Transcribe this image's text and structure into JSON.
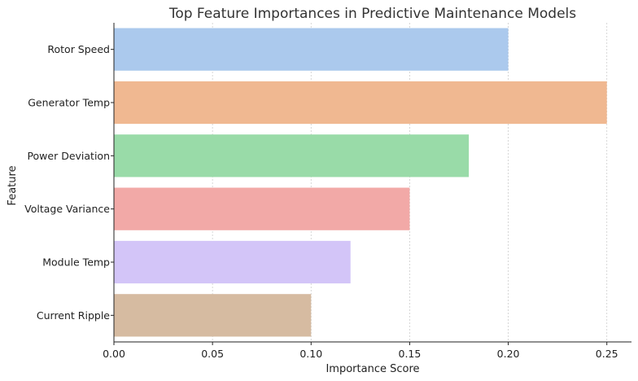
{
  "chart_data": {
    "type": "bar",
    "orientation": "horizontal",
    "title": "Top Feature Importances in Predictive Maintenance Models",
    "xlabel": "Importance Score",
    "ylabel": "Feature",
    "categories": [
      "Rotor Speed",
      "Generator Temp",
      "Power Deviation",
      "Voltage Variance",
      "Module Temp",
      "Current Ripple"
    ],
    "values": [
      0.2,
      0.25,
      0.18,
      0.15,
      0.12,
      0.1
    ],
    "colors": [
      "#abc9ed",
      "#f0b891",
      "#99dba8",
      "#f2a9a7",
      "#d3c5f8",
      "#d6bba1"
    ],
    "xlim": [
      0,
      0.2625
    ],
    "xticks": [
      0.0,
      0.05,
      0.1,
      0.15,
      0.2,
      0.25
    ],
    "xtick_labels": [
      "0.00",
      "0.05",
      "0.10",
      "0.15",
      "0.20",
      "0.25"
    ],
    "grid": "x-dashed",
    "legend": "none"
  }
}
